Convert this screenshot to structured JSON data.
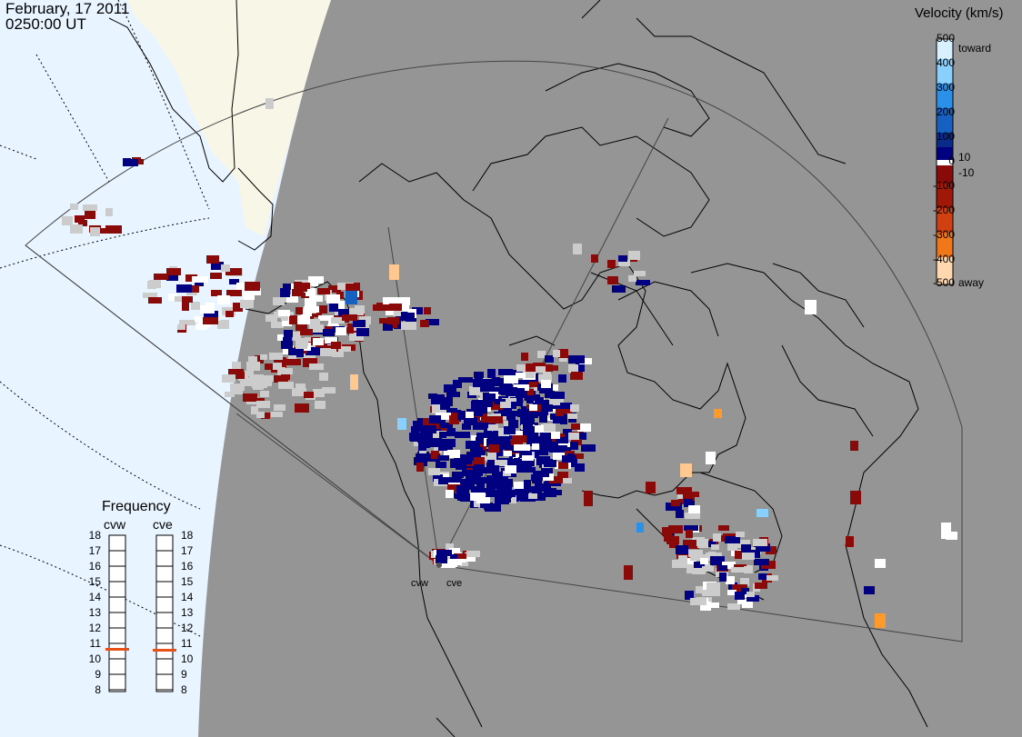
{
  "header": {
    "date": "February, 17 2011",
    "time": "0250:00 UT"
  },
  "legend": {
    "title": "Velocity (km/s)",
    "ticks": [
      "500",
      "400",
      "300",
      "200",
      "100",
      "10",
      "0",
      "-10",
      "-100",
      "-200",
      "-300",
      "-400",
      "-500"
    ],
    "toward": "toward",
    "away": "away",
    "colors": [
      "#ffd8b0",
      "#ff9a2a",
      "#e85a10",
      "#b83010",
      "#8a0a0a",
      "#000080",
      "#0a2a8a",
      "#1560c0",
      "#2a90e8",
      "#8ad0ff",
      "#d8f0ff"
    ]
  },
  "frequency": {
    "title": "Frequency",
    "radars": [
      "cvw",
      "cve"
    ],
    "scale": [
      "18",
      "17",
      "16",
      "15",
      "14",
      "13",
      "12",
      "11",
      "10",
      "9",
      "8"
    ],
    "values_mhz": [
      10.8,
      10.8
    ]
  },
  "radar_sites": [
    "cvw",
    "cve"
  ],
  "colors": {
    "land": "#959595",
    "ocean_day": "#e8f4ff",
    "land_day": "#f8f6e6",
    "ground_scatter": "#cccccc",
    "frequency_marker": "#e8501a"
  }
}
